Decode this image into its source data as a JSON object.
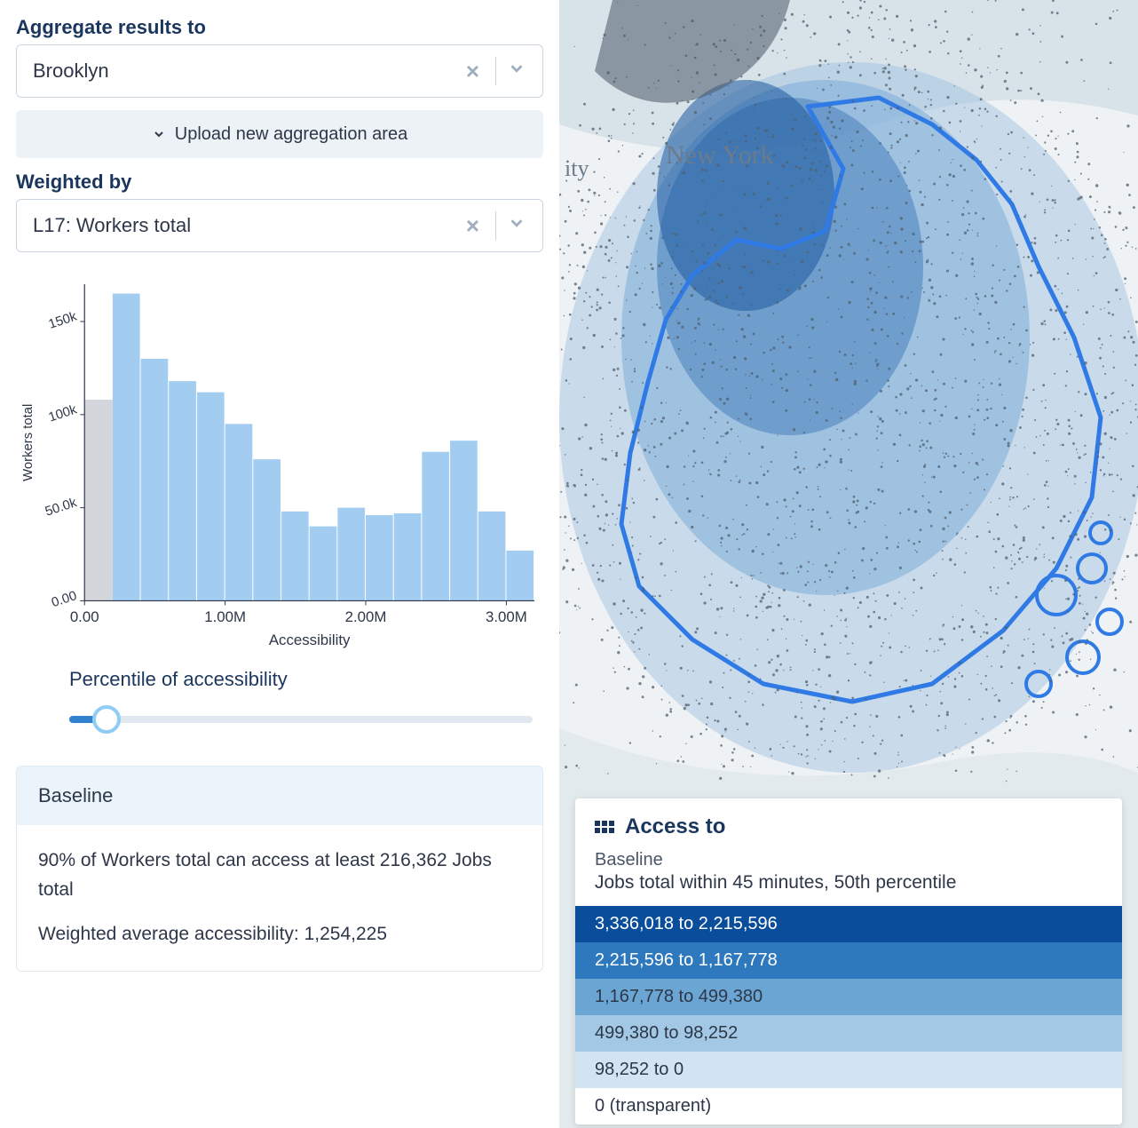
{
  "aggregate": {
    "label": "Aggregate results to",
    "value": "Brooklyn",
    "upload_label": "Upload new aggregation area"
  },
  "weighted": {
    "label": "Weighted by",
    "value": "L17: Workers total"
  },
  "histogram": {
    "type": "histogram",
    "ylabel": "Workers total",
    "xlabel": "Accessibility",
    "y_ticks": [
      "0.00",
      "50.0k",
      "100k",
      "150k"
    ],
    "y_max": 170000,
    "x_ticks": [
      "0.00",
      "1.00M",
      "2.00M",
      "3.00M"
    ],
    "x_max": 3200000,
    "bar_color": "#a3cdf0",
    "grey_bar_color": "#d3d6da",
    "axis_color": "#2d3748",
    "grey_bar": {
      "x_start": 0,
      "x_end": 200000,
      "value": 108000
    },
    "bars": [
      {
        "x_start": 200000,
        "value": 165000
      },
      {
        "x_start": 400000,
        "value": 130000
      },
      {
        "x_start": 600000,
        "value": 118000
      },
      {
        "x_start": 800000,
        "value": 112000
      },
      {
        "x_start": 1000000,
        "value": 95000
      },
      {
        "x_start": 1200000,
        "value": 76000
      },
      {
        "x_start": 1400000,
        "value": 48000
      },
      {
        "x_start": 1600000,
        "value": 40000
      },
      {
        "x_start": 1800000,
        "value": 50000
      },
      {
        "x_start": 2000000,
        "value": 46000
      },
      {
        "x_start": 2200000,
        "value": 47000
      },
      {
        "x_start": 2400000,
        "value": 80000
      },
      {
        "x_start": 2600000,
        "value": 86000
      },
      {
        "x_start": 2800000,
        "value": 48000
      },
      {
        "x_start": 3000000,
        "value": 27000
      }
    ],
    "bar_width_x": 200000
  },
  "percentile": {
    "label": "Percentile of accessibility",
    "value_pct": 8
  },
  "baseline": {
    "title": "Baseline",
    "line1": "90% of Workers total can access at least 216,362 Jobs total",
    "line2": "Weighted average accessibility: 1,254,225"
  },
  "map": {
    "outline_color": "#2f7ae5",
    "overlay_color": "#9bbfe0",
    "dot_color": "#50606e",
    "city_label": "New York",
    "partial_label": "ity"
  },
  "legend": {
    "title": "Access to",
    "sub": "Baseline",
    "desc": "Jobs total within 45 minutes, 50th percentile",
    "rows": [
      {
        "label": "3,336,018 to 2,215,596",
        "color": "#0a4d9a",
        "dark_text": false
      },
      {
        "label": "2,215,596 to 1,167,778",
        "color": "#2e79bd",
        "dark_text": false
      },
      {
        "label": "1,167,778 to 499,380",
        "color": "#6ba5d4",
        "dark_text": true
      },
      {
        "label": "499,380 to 98,252",
        "color": "#a3c8e5",
        "dark_text": true
      },
      {
        "label": "98,252 to 0",
        "color": "#d2e4f2",
        "dark_text": true
      },
      {
        "label": "0 (transparent)",
        "color": "#ffffff",
        "dark_text": true
      }
    ]
  }
}
